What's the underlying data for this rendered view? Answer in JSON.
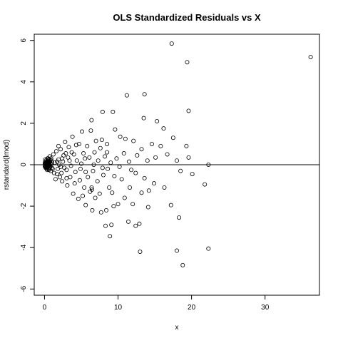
{
  "chart_data": {
    "type": "scatter",
    "title": "OLS Standardized Residuals vs X",
    "xlabel": "x",
    "ylabel": "rstandard(lmod)",
    "xlim": [
      -1.4,
      37.4
    ],
    "ylim": [
      -6.3,
      6.3
    ],
    "xticks": [
      0,
      10,
      20,
      30
    ],
    "yticks": [
      -6,
      -4,
      -2,
      0,
      2,
      4,
      6
    ],
    "reference_line": {
      "y": 0
    },
    "marker": "open-circle",
    "grid": false,
    "legend": "none",
    "points": [
      [
        36.2,
        5.2
      ],
      [
        17.3,
        5.85
      ],
      [
        19.4,
        4.95
      ],
      [
        11.2,
        3.35
      ],
      [
        13.6,
        3.4
      ],
      [
        19.6,
        2.6
      ],
      [
        13.5,
        2.25
      ],
      [
        15.3,
        2.1
      ],
      [
        16.2,
        1.75
      ],
      [
        17.5,
        1.3
      ],
      [
        19.3,
        0.9
      ],
      [
        19.6,
        0.35
      ],
      [
        16.7,
        0.5
      ],
      [
        18.0,
        0.2
      ],
      [
        20.1,
        -0.45
      ],
      [
        18.5,
        -0.3
      ],
      [
        21.8,
        -0.95
      ],
      [
        22.3,
        0.0
      ],
      [
        17.2,
        -1.95
      ],
      [
        18.3,
        -2.55
      ],
      [
        13.0,
        -4.2
      ],
      [
        18.0,
        -4.15
      ],
      [
        18.8,
        -4.85
      ],
      [
        22.3,
        -4.05
      ],
      [
        6.4,
        2.15
      ],
      [
        7.9,
        2.55
      ],
      [
        9.3,
        2.55
      ],
      [
        6.3,
        1.65
      ],
      [
        7.0,
        1.15
      ],
      [
        7.8,
        1.2
      ],
      [
        8.5,
        1.0
      ],
      [
        9.6,
        1.7
      ],
      [
        10.3,
        1.35
      ],
      [
        11.0,
        1.25
      ],
      [
        12.1,
        1.15
      ],
      [
        14.6,
        1.0
      ],
      [
        15.8,
        0.9
      ],
      [
        13.2,
        0.75
      ],
      [
        12.6,
        0.45
      ],
      [
        14.0,
        0.2
      ],
      [
        15.1,
        0.35
      ],
      [
        11.5,
        0.15
      ],
      [
        10.2,
        -0.1
      ],
      [
        12.4,
        -0.4
      ],
      [
        13.6,
        -0.65
      ],
      [
        14.9,
        -0.9
      ],
      [
        16.3,
        -1.1
      ],
      [
        11.6,
        -1.1
      ],
      [
        13.2,
        -1.35
      ],
      [
        14.2,
        -1.25
      ],
      [
        10.9,
        -1.6
      ],
      [
        12.0,
        -1.9
      ],
      [
        14.1,
        -2.05
      ],
      [
        9.4,
        -2.0
      ],
      [
        8.4,
        -2.2
      ],
      [
        7.7,
        -2.3
      ],
      [
        6.5,
        -2.2
      ],
      [
        5.6,
        -1.95
      ],
      [
        8.3,
        -2.95
      ],
      [
        9.1,
        -2.9
      ],
      [
        8.9,
        -3.45
      ],
      [
        11.4,
        -2.75
      ],
      [
        12.4,
        -2.95
      ],
      [
        12.9,
        -2.85
      ],
      [
        5.1,
        1.6
      ],
      [
        4.7,
        1.0
      ],
      [
        3.8,
        1.35
      ],
      [
        3.3,
        0.85
      ],
      [
        4.0,
        0.5
      ],
      [
        4.4,
        0.2
      ],
      [
        5.3,
        0.55
      ],
      [
        5.8,
        0.9
      ],
      [
        6.1,
        0.35
      ],
      [
        6.8,
        0.6
      ],
      [
        7.3,
        0.2
      ],
      [
        7.6,
        0.8
      ],
      [
        8.2,
        0.4
      ],
      [
        8.6,
        -0.2
      ],
      [
        9.0,
        0.1
      ],
      [
        9.8,
        0.3
      ],
      [
        9.5,
        -0.55
      ],
      [
        8.0,
        -0.5
      ],
      [
        7.2,
        -0.8
      ],
      [
        6.6,
        -0.3
      ],
      [
        5.9,
        -0.6
      ],
      [
        5.4,
        -1.1
      ],
      [
        4.8,
        -0.75
      ],
      [
        4.2,
        -0.35
      ],
      [
        3.5,
        -0.6
      ],
      [
        3.0,
        -0.25
      ],
      [
        2.6,
        0.45
      ],
      [
        2.2,
        0.75
      ],
      [
        1.9,
        0.25
      ],
      [
        1.7,
        -0.45
      ],
      [
        2.4,
        -0.8
      ],
      [
        3.1,
        -1.0
      ],
      [
        3.9,
        -1.4
      ],
      [
        4.6,
        -1.65
      ],
      [
        5.2,
        -1.5
      ],
      [
        6.2,
        -1.3
      ],
      [
        6.9,
        -1.6
      ],
      [
        7.5,
        -1.4
      ],
      [
        8.8,
        -1.1
      ],
      [
        10.5,
        -0.7
      ],
      [
        10.8,
        0.55
      ],
      [
        11.8,
        -0.25
      ],
      [
        6.4,
        -1.1
      ],
      [
        6.45,
        -1.2
      ],
      [
        2.8,
        1.1
      ],
      [
        3.4,
        0.2
      ],
      [
        4.1,
        -0.9
      ],
      [
        5.0,
        0.05
      ],
      [
        5.6,
        -0.35
      ],
      [
        6.7,
        0.0
      ],
      [
        7.9,
        -0.15
      ],
      [
        8.5,
        0.6
      ],
      [
        9.2,
        -1.35
      ],
      [
        10.0,
        -1.9
      ],
      [
        0.9,
        0.3
      ],
      [
        1.2,
        0.5
      ],
      [
        1.4,
        0.1
      ],
      [
        1.6,
        0.65
      ],
      [
        1.1,
        -0.2
      ],
      [
        0.8,
        -0.1
      ],
      [
        1.3,
        -0.4
      ],
      [
        1.8,
        -0.2
      ],
      [
        2.0,
        0.0
      ],
      [
        2.3,
        -0.4
      ],
      [
        2.5,
        0.15
      ],
      [
        2.9,
        0.55
      ],
      [
        3.6,
        -0.05
      ],
      [
        3.2,
        0.35
      ],
      [
        2.1,
        -0.6
      ],
      [
        1.5,
        -0.7
      ],
      [
        0.7,
        0.4
      ],
      [
        1.0,
        0.1
      ],
      [
        0.6,
        -0.25
      ],
      [
        1.9,
        0.9
      ],
      [
        2.7,
        -0.15
      ],
      [
        3.7,
        0.6
      ],
      [
        4.3,
        0.95
      ],
      [
        4.9,
        -0.2
      ],
      [
        5.5,
        0.3
      ],
      [
        2.4,
        0.3
      ],
      [
        3.0,
        -0.65
      ],
      [
        1.7,
        0.15
      ],
      [
        2.2,
        -0.1
      ],
      [
        0.5,
        0.05
      ],
      [
        0.05,
        0.05
      ],
      [
        0.1,
        -0.05
      ],
      [
        0.15,
        0.1
      ],
      [
        0.2,
        0.0
      ],
      [
        0.25,
        -0.1
      ],
      [
        0.3,
        0.15
      ],
      [
        0.35,
        0.05
      ],
      [
        0.4,
        -0.15
      ],
      [
        0.45,
        0.2
      ],
      [
        0.5,
        -0.05
      ],
      [
        0.55,
        0.1
      ],
      [
        0.6,
        0.25
      ],
      [
        0.65,
        -0.2
      ],
      [
        0.7,
        0.0
      ],
      [
        0.75,
        0.15
      ],
      [
        0.2,
        0.2
      ],
      [
        0.3,
        -0.2
      ],
      [
        0.4,
        0.3
      ],
      [
        0.15,
        -0.15
      ],
      [
        0.1,
        0.25
      ],
      [
        0.35,
        -0.25
      ],
      [
        0.5,
        0.3
      ],
      [
        0.25,
        0.1
      ],
      [
        0.45,
        -0.05
      ],
      [
        0.6,
        0.0
      ],
      [
        0.08,
        0.12
      ],
      [
        0.12,
        -0.1
      ],
      [
        0.18,
        0.04
      ],
      [
        0.22,
        -0.02
      ],
      [
        0.28,
        0.08
      ],
      [
        0.32,
        -0.12
      ],
      [
        0.38,
        0.14
      ],
      [
        0.42,
        -0.08
      ],
      [
        0.48,
        0.18
      ],
      [
        0.52,
        -0.18
      ],
      [
        0.58,
        0.06
      ],
      [
        0.62,
        -0.06
      ],
      [
        0.68,
        0.12
      ],
      [
        0.72,
        -0.14
      ],
      [
        0.78,
        0.22
      ],
      [
        0.85,
        -0.3
      ],
      [
        0.9,
        0.0
      ],
      [
        0.95,
        0.2
      ],
      [
        1.0,
        -0.15
      ],
      [
        0.05,
        -0.08
      ],
      [
        0.1,
        0.06
      ],
      [
        0.15,
        0.02
      ],
      [
        0.2,
        -0.12
      ],
      [
        0.3,
        0.02
      ],
      [
        0.4,
        0.06
      ]
    ]
  }
}
